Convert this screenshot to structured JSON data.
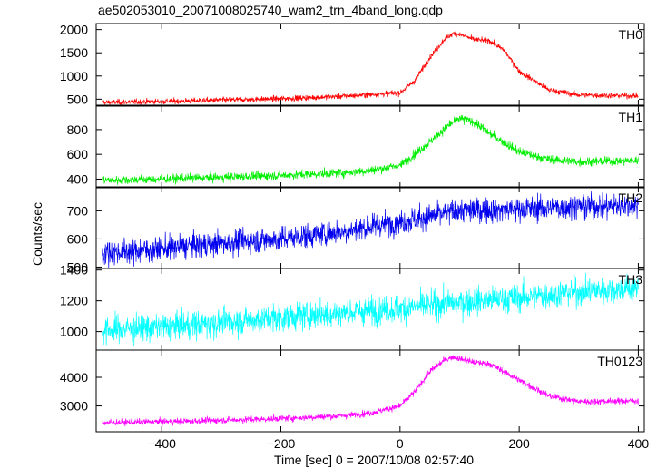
{
  "title": "ae502053010_20071008025740_wam2_trn_4band_long.qdp",
  "chart_data": {
    "type": "line",
    "title": "ae502053010_20071008025740_wam2_trn_4band_long.qdp",
    "xlabel": "Time [sec] 0 = 2007/10/08 02:57:40",
    "ylabel": "Counts/sec",
    "xlim": [
      -510,
      410
    ],
    "x_ticks": [
      -400,
      -200,
      0,
      200,
      400
    ],
    "x_tick_labels": [
      "−400",
      "−200",
      "0",
      "200",
      "400"
    ],
    "grid": false,
    "series": [
      {
        "name": "TH0",
        "color": "#ff0000",
        "ylim": [
          370,
          2130
        ],
        "y_ticks": [
          500,
          1000,
          1500,
          2000
        ],
        "noise": 30,
        "x": [
          -500,
          -400,
          -300,
          -200,
          -100,
          0,
          25,
          50,
          75,
          90,
          100,
          125,
          150,
          175,
          200,
          250,
          300,
          400
        ],
        "y": [
          430,
          450,
          480,
          510,
          560,
          640,
          900,
          1400,
          1800,
          1920,
          1900,
          1780,
          1760,
          1550,
          1100,
          700,
          590,
          570
        ]
      },
      {
        "name": "TH1",
        "color": "#00ee00",
        "ylim": [
          330,
          990
        ],
        "y_ticks": [
          400,
          600,
          800
        ],
        "noise": 18,
        "x": [
          -500,
          -400,
          -300,
          -200,
          -100,
          -50,
          0,
          50,
          80,
          100,
          125,
          150,
          200,
          250,
          300,
          400
        ],
        "y": [
          390,
          400,
          415,
          430,
          450,
          470,
          510,
          700,
          830,
          890,
          860,
          770,
          620,
          560,
          540,
          550
        ]
      },
      {
        "name": "TH2",
        "color": "#0000ee",
        "ylim": [
          495,
          785
        ],
        "y_ticks": [
          500,
          600,
          700
        ],
        "noise": 22,
        "x": [
          -500,
          -400,
          -300,
          -200,
          -100,
          0,
          100,
          200,
          300,
          400
        ],
        "y": [
          550,
          565,
          585,
          600,
          625,
          660,
          700,
          705,
          715,
          720
        ]
      },
      {
        "name": "TH3",
        "color": "#00ffff",
        "ylim": [
          880,
          1410
        ],
        "y_ticks": [
          1000,
          1200,
          1400
        ],
        "noise": 45,
        "x": [
          -500,
          -400,
          -300,
          -200,
          -100,
          0,
          100,
          200,
          300,
          400
        ],
        "y": [
          1010,
          1030,
          1060,
          1090,
          1120,
          1150,
          1190,
          1220,
          1260,
          1280
        ]
      },
      {
        "name": "TH0123",
        "color": "#ff00ff",
        "ylim": [
          2100,
          4950
        ],
        "y_ticks": [
          3000,
          4000
        ],
        "noise": 55,
        "x": [
          -500,
          -400,
          -300,
          -200,
          -100,
          -50,
          0,
          25,
          50,
          75,
          90,
          100,
          125,
          150,
          200,
          250,
          300,
          400
        ],
        "y": [
          2420,
          2450,
          2500,
          2560,
          2650,
          2750,
          3000,
          3500,
          4200,
          4600,
          4720,
          4650,
          4520,
          4480,
          3900,
          3350,
          3150,
          3180
        ]
      }
    ]
  }
}
